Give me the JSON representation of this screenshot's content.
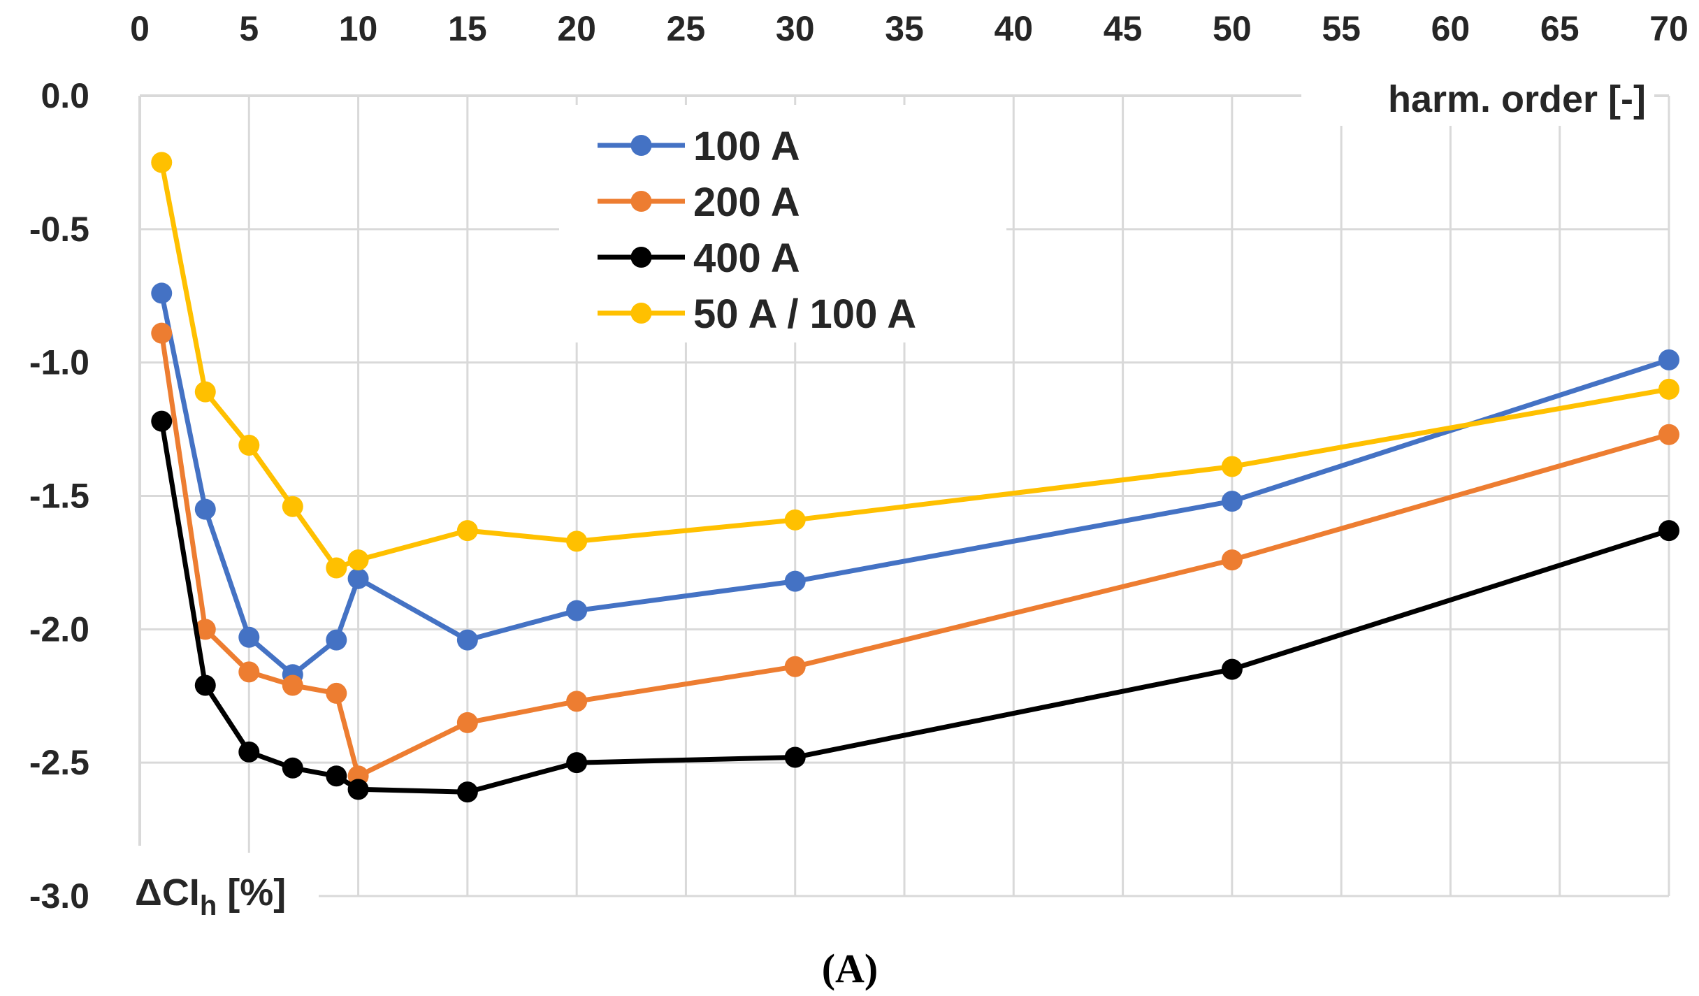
{
  "chart_data": {
    "type": "line",
    "title": "",
    "caption": "(A)",
    "xlabel": "harm. order [-]",
    "ylabel": {
      "prefix": "ΔCI",
      "subscript": "h",
      "suffix": " [%]"
    },
    "xlim": [
      0,
      70
    ],
    "ylim": [
      -3.0,
      0.0
    ],
    "x_ticks": [
      0,
      5,
      10,
      15,
      20,
      25,
      30,
      35,
      40,
      45,
      50,
      55,
      60,
      65,
      70
    ],
    "x_tick_labels": [
      "0",
      "5",
      "10",
      "15",
      "20",
      "25",
      "30",
      "35",
      "40",
      "45",
      "50",
      "55",
      "60",
      "65",
      "70"
    ],
    "y_ticks": [
      0.0,
      -0.5,
      -1.0,
      -1.5,
      -2.0,
      -2.5,
      -3.0
    ],
    "y_tick_labels": [
      "0.0",
      "-0.5",
      "-1.0",
      "-1.5",
      "-2.0",
      "-2.5",
      "-3.0"
    ],
    "x_axis_position": "top",
    "grid": true,
    "legend_position": "top-center",
    "x": [
      1,
      3,
      5,
      7,
      9,
      10,
      15,
      20,
      30,
      50,
      70
    ],
    "series": [
      {
        "name": "100 A",
        "color": "#4472C4",
        "values": [
          -0.74,
          -1.55,
          -2.03,
          -2.17,
          -2.04,
          -1.81,
          -2.04,
          -1.93,
          -1.82,
          -1.52,
          -0.99
        ]
      },
      {
        "name": "200 A",
        "color": "#ED7D31",
        "values": [
          -0.89,
          -2.0,
          -2.16,
          -2.21,
          -2.24,
          -2.55,
          -2.35,
          -2.27,
          -2.14,
          -1.74,
          -1.27
        ]
      },
      {
        "name": "400 A",
        "color": "#000000",
        "values": [
          -1.22,
          -2.21,
          -2.46,
          -2.52,
          -2.55,
          -2.6,
          -2.61,
          -2.5,
          -2.48,
          -2.15,
          -1.63
        ]
      },
      {
        "name": "50 A / 100 A",
        "color": "#FFC000",
        "values": [
          -0.25,
          -1.11,
          -1.31,
          -1.54,
          -1.77,
          -1.74,
          -1.63,
          -1.67,
          -1.59,
          -1.39,
          -1.1
        ]
      }
    ]
  }
}
